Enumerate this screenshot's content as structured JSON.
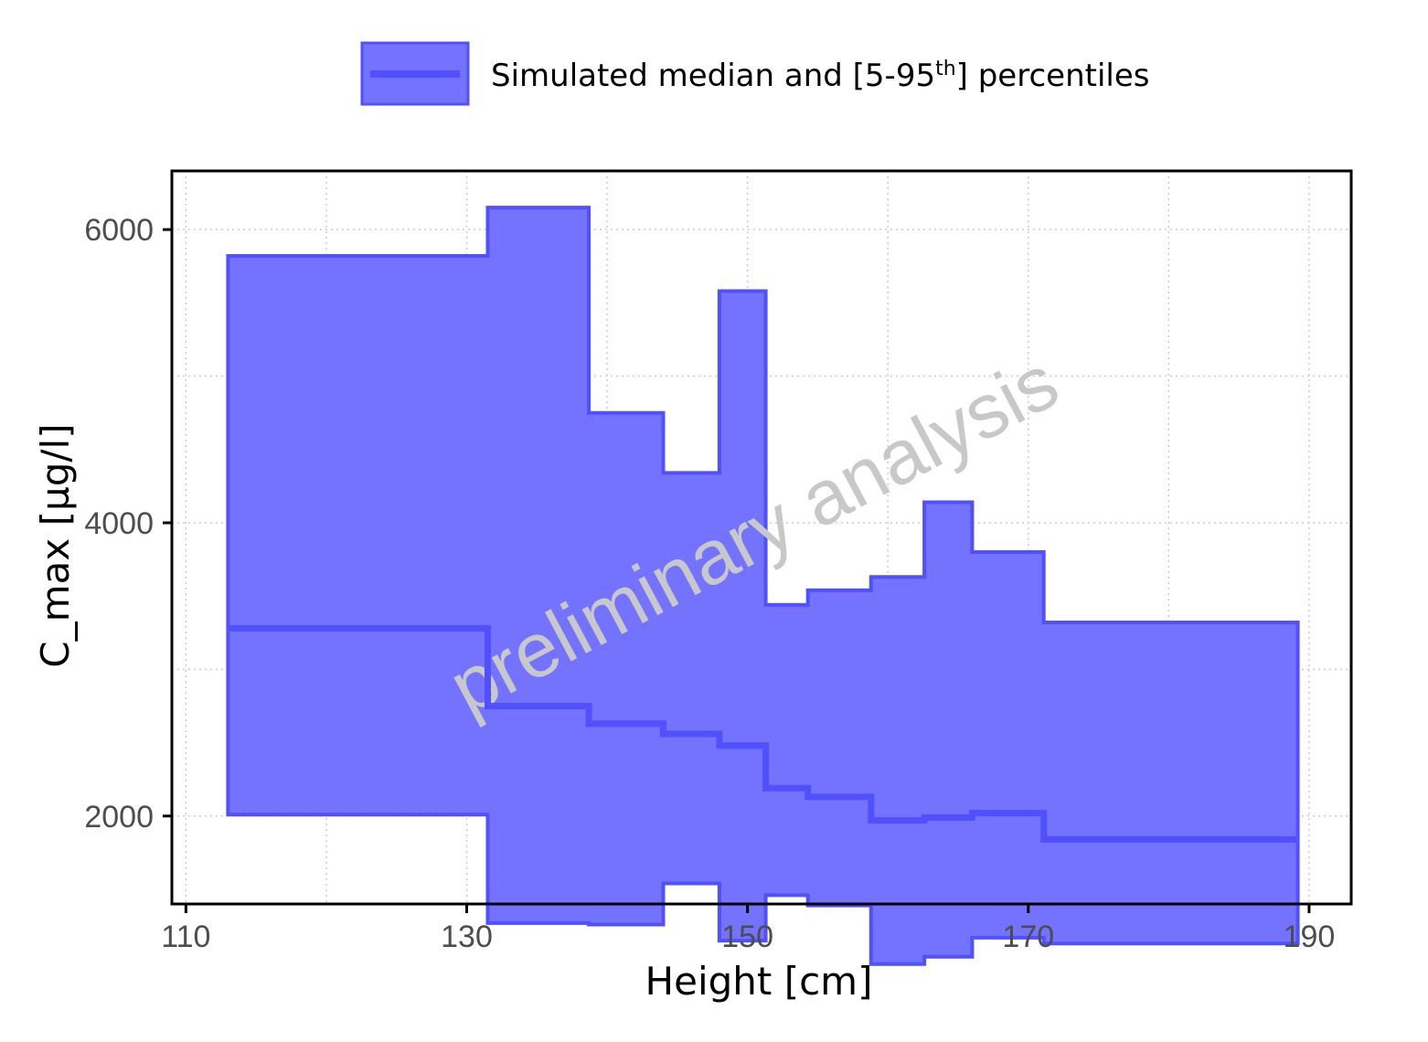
{
  "chart_data": {
    "type": "area",
    "title": "",
    "xlabel": "Height [cm]",
    "ylabel": "C_max [µg/l]",
    "xlim": [
      109,
      193
    ],
    "ylim": [
      1400,
      6400
    ],
    "x_ticks": [
      110,
      130,
      150,
      170,
      190
    ],
    "y_ticks": [
      2000,
      4000,
      6000
    ],
    "grid": true,
    "legend_position": "top",
    "legend": {
      "label_prefix": "Simulated median and [5-95",
      "label_sup": "th",
      "label_suffix": "] percentiles"
    },
    "watermark": "preliminary analysis",
    "color": "#5050FF",
    "bins": [
      {
        "x0": 113,
        "x1": 131.5,
        "p5": 2010,
        "median": 3280,
        "p95": 5820
      },
      {
        "x0": 131.5,
        "x1": 138.7,
        "p5": 1270,
        "median": 2750,
        "p95": 6150
      },
      {
        "x0": 138.7,
        "x1": 144,
        "p5": 1260,
        "median": 2630,
        "p95": 4750
      },
      {
        "x0": 144,
        "x1": 148,
        "p5": 1540,
        "median": 2560,
        "p95": 4340
      },
      {
        "x0": 148,
        "x1": 151.3,
        "p5": 1150,
        "median": 2480,
        "p95": 5580
      },
      {
        "x0": 151.3,
        "x1": 154.3,
        "p5": 1460,
        "median": 2190,
        "p95": 3440
      },
      {
        "x0": 154.3,
        "x1": 158.8,
        "p5": 1390,
        "median": 2130,
        "p95": 3540
      },
      {
        "x0": 158.8,
        "x1": 162.6,
        "p5": 990,
        "median": 1970,
        "p95": 3630
      },
      {
        "x0": 162.6,
        "x1": 166,
        "p5": 1040,
        "median": 1990,
        "p95": 4140
      },
      {
        "x0": 166,
        "x1": 171.1,
        "p5": 1170,
        "median": 2020,
        "p95": 3800
      },
      {
        "x0": 171.1,
        "x1": 189.2,
        "p5": 1130,
        "median": 1840,
        "p95": 3320
      }
    ]
  }
}
